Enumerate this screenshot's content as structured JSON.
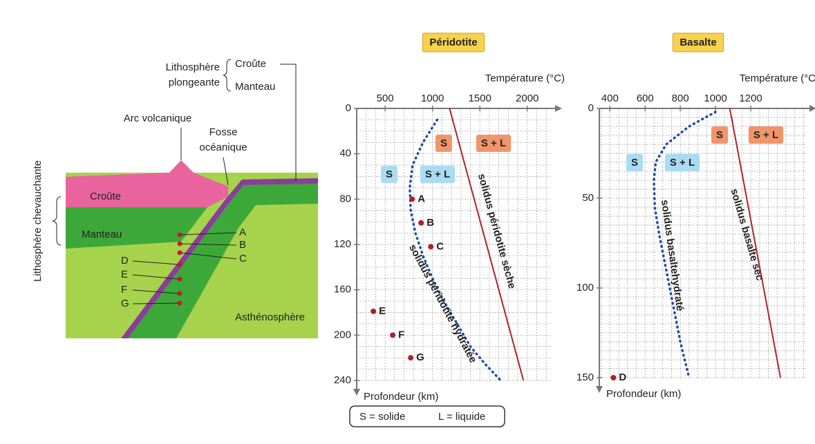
{
  "diagram": {
    "lithosphere_plongeante": [
      "Lithosphère",
      "plongeante"
    ],
    "plongeante_parts": [
      "Croûte",
      "Manteau"
    ],
    "arc": "Arc volcanique",
    "fosse": [
      "Fosse",
      "océanique"
    ],
    "chevauchante": "Lithosphère chevauchante",
    "layers": [
      "Croûte",
      "Manteau",
      "Asthénosphère"
    ],
    "points": [
      "A",
      "B",
      "C",
      "D",
      "E",
      "F",
      "G"
    ]
  },
  "key": [
    "S = solide",
    "L = liquide"
  ],
  "chart_data": [
    {
      "type": "line",
      "title": "Péridotite",
      "x_label": "Température (°C)",
      "y_label": "Profondeur (km)",
      "xlim": [
        200,
        2250
      ],
      "xticks": [
        500,
        1000,
        1500,
        2000
      ],
      "ylim": [
        0,
        240
      ],
      "yticks": [
        0,
        40,
        80,
        120,
        160,
        200,
        240
      ],
      "y_inverted": true,
      "grid": true,
      "grid_step": [
        100,
        10
      ],
      "series": [
        {
          "name": "solidus péridotite sèche",
          "color": "#b0202a",
          "style": "solid",
          "x": [
            1180,
            1960
          ],
          "values": [
            0,
            240
          ]
        },
        {
          "name": "solidus péridotite hydratée",
          "color": "#1f4fa0",
          "style": "dotted",
          "x": [
            1050,
            900,
            790,
            760,
            770,
            820,
            900,
            1000,
            1120,
            1260,
            1400,
            1550,
            1720
          ],
          "values": [
            10,
            30,
            50,
            70,
            90,
            110,
            130,
            150,
            170,
            190,
            210,
            225,
            240
          ]
        }
      ],
      "points": {
        "color": "#b0202a",
        "labels": [
          "A",
          "B",
          "C",
          "E",
          "F",
          "G"
        ],
        "x": [
          785,
          880,
          982,
          376,
          580,
          770
        ],
        "values": [
          80,
          101,
          122,
          179,
          200,
          220
        ]
      },
      "annotations": [
        {
          "text": "S",
          "color": "#f0956a",
          "text_color": "#ffffff"
        },
        {
          "text": "S + L",
          "color": "#f0956a",
          "text_color": "#ffffff"
        },
        {
          "text": "S",
          "color": "#a9dcf2",
          "text_color": "#1f4fa0"
        },
        {
          "text": "S + L",
          "color": "#a9dcf2",
          "text_color": "#1f4fa0"
        }
      ]
    },
    {
      "type": "line",
      "title": "Basalte",
      "x_label": "Température (°C)",
      "y_label": "Profondeur (km)",
      "xlim": [
        340,
        1510
      ],
      "xticks": [
        400,
        600,
        800,
        1000,
        1200
      ],
      "ylim": [
        0,
        150
      ],
      "yticks": [
        0,
        50,
        100,
        150
      ],
      "y_inverted": true,
      "grid": true,
      "grid_step": [
        50,
        5
      ],
      "series": [
        {
          "name": "solidus basaltehydraté",
          "color": "#1f4fa0",
          "style": "dotted",
          "x": [
            1000,
            850,
            720,
            660,
            650,
            655,
            680,
            720,
            760,
            800,
            850
          ],
          "values": [
            2,
            10,
            20,
            30,
            40,
            55,
            70,
            90,
            110,
            130,
            150
          ]
        },
        {
          "name": "solidus basalte sec",
          "color": "#b0202a",
          "style": "solid",
          "x": [
            1081,
            1369
          ],
          "values": [
            0,
            150
          ]
        }
      ],
      "points": {
        "color": "#b0202a",
        "labels": [
          "D"
        ],
        "x": [
          420
        ],
        "values": [
          150
        ]
      },
      "annotations": [
        {
          "text": "S",
          "color": "#f0956a",
          "text_color": "#ffffff"
        },
        {
          "text": "S + L",
          "color": "#f0956a",
          "text_color": "#ffffff"
        },
        {
          "text": "S",
          "color": "#a9dcf2",
          "text_color": "#1f4fa0"
        },
        {
          "text": "S + L",
          "color": "#a9dcf2",
          "text_color": "#1f4fa0"
        }
      ]
    }
  ]
}
